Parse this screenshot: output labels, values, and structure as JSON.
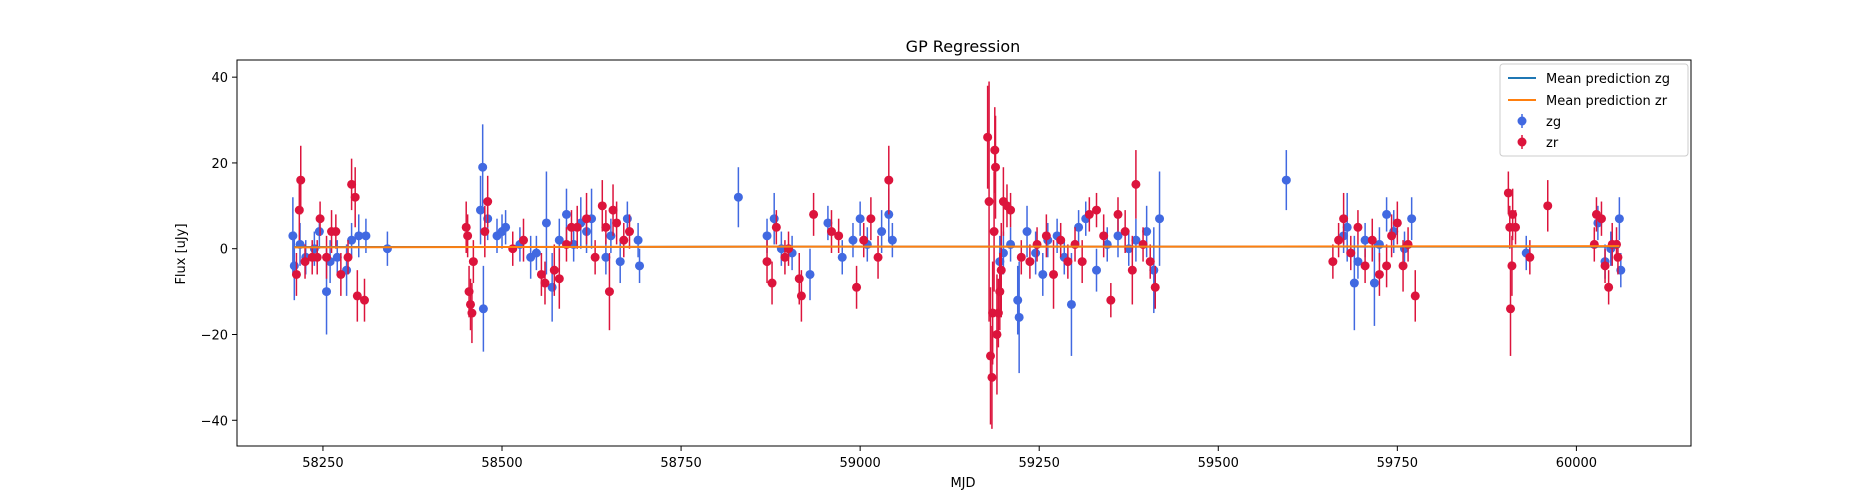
{
  "chart_data": {
    "type": "scatter",
    "title": "GP Regression",
    "xlabel": "MJD",
    "ylabel": "Flux [uJy]",
    "xlim": [
      58130,
      60160
    ],
    "ylim": [
      -46,
      44
    ],
    "x_ticks": [
      58250,
      58500,
      58750,
      59000,
      59250,
      59500,
      59750,
      60000
    ],
    "y_ticks": [
      -40,
      -20,
      0,
      20,
      40
    ],
    "y_tick_labels": [
      "−40",
      "−20",
      "0",
      "20",
      "40"
    ],
    "grid": false,
    "legend_position": "top-right",
    "colors": {
      "zg": "#4169e1",
      "zr": "#dc143c",
      "mean_zg": "#1f77b4",
      "mean_zr": "#ff7f0e"
    },
    "series": [
      {
        "name": "Mean prediction zg",
        "kind": "line",
        "x": [
          58210,
          58500,
          59000,
          59500,
          60060
        ],
        "y": [
          0.4,
          0.4,
          0.5,
          0.5,
          0.5
        ]
      },
      {
        "name": "Mean prediction zr",
        "kind": "line",
        "x": [
          58210,
          58500,
          59000,
          59500,
          60060
        ],
        "y": [
          0.3,
          0.4,
          0.5,
          0.5,
          0.6
        ]
      },
      {
        "name": "zg",
        "kind": "errorbar",
        "points": [
          [
            58208,
            3,
            9
          ],
          [
            58210,
            -4,
            8
          ],
          [
            58218,
            1,
            5
          ],
          [
            58226,
            -2,
            4
          ],
          [
            58238,
            0,
            4
          ],
          [
            58245,
            4,
            4
          ],
          [
            58255,
            -10,
            10
          ],
          [
            58260,
            -3,
            5
          ],
          [
            58270,
            -2,
            4
          ],
          [
            58283,
            -5,
            6
          ],
          [
            58290,
            2,
            4
          ],
          [
            58300,
            3,
            5
          ],
          [
            58310,
            3,
            4
          ],
          [
            58340,
            0,
            4
          ],
          [
            58470,
            9,
            8
          ],
          [
            58473,
            19,
            10
          ],
          [
            58474,
            -14,
            10
          ],
          [
            58480,
            7,
            5
          ],
          [
            58493,
            3,
            4
          ],
          [
            58500,
            4,
            4
          ],
          [
            58505,
            5,
            4
          ],
          [
            58525,
            1,
            4
          ],
          [
            58540,
            -2,
            5
          ],
          [
            58548,
            -1,
            4
          ],
          [
            58562,
            6,
            12
          ],
          [
            58570,
            -9,
            8
          ],
          [
            58580,
            2,
            5
          ],
          [
            58590,
            8,
            6
          ],
          [
            58600,
            1,
            4
          ],
          [
            58610,
            6,
            6
          ],
          [
            58618,
            4,
            5
          ],
          [
            58625,
            7,
            7
          ],
          [
            58645,
            -2,
            4
          ],
          [
            58652,
            3,
            4
          ],
          [
            58665,
            -3,
            5
          ],
          [
            58675,
            7,
            4
          ],
          [
            58690,
            2,
            4
          ],
          [
            58692,
            -4,
            4
          ],
          [
            58830,
            12,
            7
          ],
          [
            58870,
            3,
            4
          ],
          [
            58880,
            7,
            6
          ],
          [
            58890,
            0,
            4
          ],
          [
            58905,
            -1,
            4
          ],
          [
            58930,
            -6,
            6
          ],
          [
            58955,
            6,
            4
          ],
          [
            58975,
            -2,
            4
          ],
          [
            58990,
            2,
            4
          ],
          [
            59000,
            7,
            4
          ],
          [
            59010,
            1,
            4
          ],
          [
            59030,
            4,
            5
          ],
          [
            59040,
            8,
            6
          ],
          [
            59045,
            2,
            4
          ],
          [
            59195,
            -3,
            6
          ],
          [
            59200,
            -1,
            5
          ],
          [
            59210,
            1,
            4
          ],
          [
            59220,
            -12,
            8
          ],
          [
            59222,
            -16,
            13
          ],
          [
            59233,
            4,
            6
          ],
          [
            59245,
            -1,
            5
          ],
          [
            59255,
            -6,
            5
          ],
          [
            59262,
            2,
            4
          ],
          [
            59275,
            3,
            4
          ],
          [
            59285,
            -2,
            4
          ],
          [
            59295,
            -13,
            12
          ],
          [
            59305,
            5,
            4
          ],
          [
            59315,
            7,
            4
          ],
          [
            59330,
            -5,
            5
          ],
          [
            59345,
            1,
            4
          ],
          [
            59360,
            3,
            5
          ],
          [
            59375,
            0,
            4
          ],
          [
            59385,
            2,
            5
          ],
          [
            59400,
            4,
            6
          ],
          [
            59410,
            -5,
            10
          ],
          [
            59418,
            7,
            11
          ],
          [
            59595,
            16,
            7
          ],
          [
            59675,
            3,
            4
          ],
          [
            59680,
            5,
            8
          ],
          [
            59690,
            -8,
            11
          ],
          [
            59695,
            -3,
            4
          ],
          [
            59705,
            2,
            4
          ],
          [
            59718,
            -8,
            10
          ],
          [
            59725,
            1,
            4
          ],
          [
            59735,
            8,
            4
          ],
          [
            59745,
            4,
            5
          ],
          [
            59760,
            0,
            4
          ],
          [
            59770,
            7,
            5
          ],
          [
            59930,
            -1,
            4
          ],
          [
            60030,
            6,
            4
          ],
          [
            60040,
            -3,
            4
          ],
          [
            60048,
            0,
            4
          ],
          [
            60060,
            7,
            5
          ],
          [
            60062,
            -5,
            4
          ]
        ]
      },
      {
        "name": "zr",
        "kind": "errorbar",
        "points": [
          [
            58213,
            -6,
            5
          ],
          [
            58217,
            9,
            7
          ],
          [
            58219,
            16,
            8
          ],
          [
            58225,
            -3,
            4
          ],
          [
            58235,
            -2,
            4
          ],
          [
            58242,
            -2,
            4
          ],
          [
            58246,
            7,
            4
          ],
          [
            58255,
            -2,
            5
          ],
          [
            58262,
            4,
            5
          ],
          [
            58268,
            4,
            4
          ],
          [
            58275,
            -6,
            5
          ],
          [
            58285,
            -2,
            4
          ],
          [
            58290,
            15,
            6
          ],
          [
            58295,
            12,
            7
          ],
          [
            58298,
            -11,
            6
          ],
          [
            58308,
            -12,
            5
          ],
          [
            58450,
            5,
            6
          ],
          [
            58452,
            3,
            5
          ],
          [
            58454,
            -10,
            6
          ],
          [
            58456,
            -13,
            6
          ],
          [
            58458,
            -15,
            7
          ],
          [
            58460,
            -3,
            5
          ],
          [
            58476,
            4,
            6
          ],
          [
            58480,
            11,
            6
          ],
          [
            58515,
            0,
            4
          ],
          [
            58530,
            2,
            5
          ],
          [
            58555,
            -6,
            5
          ],
          [
            58560,
            -8,
            5
          ],
          [
            58573,
            -5,
            6
          ],
          [
            58580,
            -7,
            7
          ],
          [
            58590,
            1,
            4
          ],
          [
            58597,
            5,
            4
          ],
          [
            58605,
            5,
            5
          ],
          [
            58618,
            7,
            6
          ],
          [
            58630,
            -2,
            4
          ],
          [
            58640,
            10,
            6
          ],
          [
            58645,
            5,
            4
          ],
          [
            58650,
            -10,
            9
          ],
          [
            58655,
            9,
            6
          ],
          [
            58660,
            6,
            5
          ],
          [
            58670,
            2,
            4
          ],
          [
            58678,
            4,
            4
          ],
          [
            58870,
            -3,
            5
          ],
          [
            58877,
            -8,
            5
          ],
          [
            58883,
            5,
            4
          ],
          [
            58895,
            -2,
            4
          ],
          [
            58900,
            0,
            4
          ],
          [
            58915,
            -7,
            6
          ],
          [
            58918,
            -11,
            6
          ],
          [
            58935,
            8,
            5
          ],
          [
            58960,
            4,
            5
          ],
          [
            58970,
            3,
            4
          ],
          [
            58995,
            -9,
            5
          ],
          [
            59005,
            2,
            4
          ],
          [
            59015,
            7,
            5
          ],
          [
            59025,
            -2,
            5
          ],
          [
            59040,
            16,
            8
          ],
          [
            59178,
            26,
            12
          ],
          [
            59180,
            11,
            28
          ],
          [
            59182,
            -25,
            16
          ],
          [
            59184,
            -30,
            12
          ],
          [
            59185,
            -15,
            12
          ],
          [
            59187,
            4,
            14
          ],
          [
            59188,
            23,
            10
          ],
          [
            59189,
            19,
            12
          ],
          [
            59191,
            -20,
            14
          ],
          [
            59193,
            -15,
            8
          ],
          [
            59195,
            -10,
            9
          ],
          [
            59197,
            -5,
            11
          ],
          [
            59200,
            11,
            8
          ],
          [
            59205,
            10,
            5
          ],
          [
            59210,
            9,
            4
          ],
          [
            59225,
            -2,
            4
          ],
          [
            59237,
            -3,
            4
          ],
          [
            59247,
            1,
            4
          ],
          [
            59260,
            3,
            5
          ],
          [
            59270,
            -6,
            8
          ],
          [
            59280,
            2,
            4
          ],
          [
            59290,
            -3,
            4
          ],
          [
            59300,
            1,
            4
          ],
          [
            59310,
            -3,
            5
          ],
          [
            59320,
            8,
            4
          ],
          [
            59330,
            9,
            4
          ],
          [
            59340,
            3,
            5
          ],
          [
            59350,
            -12,
            4
          ],
          [
            59360,
            8,
            4
          ],
          [
            59370,
            4,
            5
          ],
          [
            59380,
            -5,
            8
          ],
          [
            59385,
            15,
            8
          ],
          [
            59395,
            1,
            4
          ],
          [
            59405,
            -3,
            4
          ],
          [
            59412,
            -9,
            5
          ],
          [
            59660,
            -3,
            4
          ],
          [
            59668,
            2,
            4
          ],
          [
            59675,
            7,
            6
          ],
          [
            59685,
            -1,
            4
          ],
          [
            59695,
            5,
            4
          ],
          [
            59705,
            -4,
            4
          ],
          [
            59715,
            2,
            5
          ],
          [
            59725,
            -6,
            5
          ],
          [
            59735,
            -4,
            5
          ],
          [
            59742,
            3,
            5
          ],
          [
            59750,
            6,
            5
          ],
          [
            59758,
            -4,
            6
          ],
          [
            59765,
            1,
            4
          ],
          [
            59775,
            -11,
            6
          ],
          [
            59905,
            13,
            5
          ],
          [
            59907,
            5,
            5
          ],
          [
            59908,
            -14,
            11
          ],
          [
            59910,
            -4,
            7
          ],
          [
            59911,
            8,
            6
          ],
          [
            59915,
            5,
            4
          ],
          [
            59935,
            -2,
            4
          ],
          [
            59960,
            10,
            6
          ],
          [
            60025,
            1,
            4
          ],
          [
            60028,
            8,
            4
          ],
          [
            60035,
            7,
            4
          ],
          [
            60040,
            -4,
            4
          ],
          [
            60045,
            -9,
            4
          ],
          [
            60050,
            1,
            5
          ],
          [
            60056,
            1,
            4
          ],
          [
            60058,
            -2,
            4
          ]
        ]
      }
    ]
  }
}
